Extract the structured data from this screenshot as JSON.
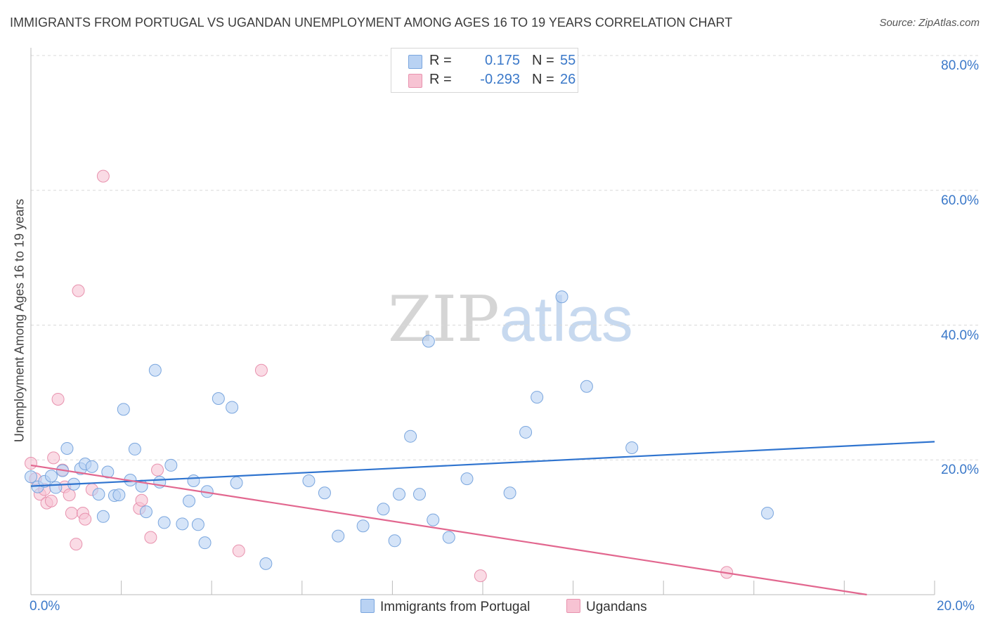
{
  "title": "IMMIGRANTS FROM PORTUGAL VS UGANDAN UNEMPLOYMENT AMONG AGES 16 TO 19 YEARS CORRELATION CHART",
  "source": "Source: ZipAtlas.com",
  "watermark": {
    "zip": "ZIP",
    "atlas": "atlas"
  },
  "colors": {
    "blue_fill": "#b9d2f3",
    "blue_stroke": "#7aa6de",
    "blue_line": "#2f74cf",
    "pink_fill": "#f7c3d3",
    "pink_stroke": "#e892ae",
    "pink_line": "#e2678f",
    "tick_text": "#3a78c9",
    "grid": "#d9d9d9"
  },
  "legend": {
    "rows": [
      {
        "r_label": "R =",
        "r_value": "0.175",
        "n_label": "N =",
        "n_value": "55",
        "color": "#b9d2f3",
        "stroke": "#7aa6de"
      },
      {
        "r_label": "R =",
        "r_value": "-0.293",
        "n_label": "N =",
        "n_value": "26",
        "color": "#f7c3d3",
        "stroke": "#e892ae"
      }
    ]
  },
  "bottom_legend": [
    "Immigrants from Portugal",
    "Ugandans"
  ],
  "chart_data": {
    "type": "scatter",
    "title": "IMMIGRANTS FROM PORTUGAL VS UGANDAN UNEMPLOYMENT AMONG AGES 16 TO 19 YEARS CORRELATION CHART",
    "xlabel": "",
    "ylabel": "Unemployment Among Ages 16 to 19 years",
    "xlim": [
      0,
      20
    ],
    "ylim": [
      0,
      80
    ],
    "x_tick_labels": [
      "0.0%",
      "20.0%"
    ],
    "y_ticks": [
      20,
      40,
      60,
      80
    ],
    "y_tick_labels": [
      "20.0%",
      "40.0%",
      "60.0%",
      "80.0%"
    ],
    "grid": true,
    "series": [
      {
        "name": "Immigrants from Portugal",
        "color": "#b9d2f3",
        "points": [
          [
            0.0,
            17.5
          ],
          [
            0.15,
            16.0
          ],
          [
            0.3,
            16.8
          ],
          [
            0.45,
            17.6
          ],
          [
            0.55,
            15.9
          ],
          [
            0.7,
            18.4
          ],
          [
            0.8,
            21.7
          ],
          [
            0.95,
            16.4
          ],
          [
            1.1,
            18.7
          ],
          [
            1.2,
            19.4
          ],
          [
            1.35,
            19.0
          ],
          [
            1.5,
            14.9
          ],
          [
            1.6,
            11.6
          ],
          [
            1.7,
            18.2
          ],
          [
            1.85,
            14.7
          ],
          [
            1.95,
            14.8
          ],
          [
            2.05,
            27.5
          ],
          [
            2.2,
            17.0
          ],
          [
            2.3,
            21.6
          ],
          [
            2.45,
            16.1
          ],
          [
            2.55,
            12.3
          ],
          [
            2.75,
            33.3
          ],
          [
            2.85,
            16.7
          ],
          [
            2.95,
            10.7
          ],
          [
            3.1,
            19.2
          ],
          [
            3.35,
            10.5
          ],
          [
            3.5,
            13.9
          ],
          [
            3.6,
            16.9
          ],
          [
            3.7,
            10.4
          ],
          [
            3.85,
            7.7
          ],
          [
            3.9,
            15.3
          ],
          [
            4.15,
            29.1
          ],
          [
            4.45,
            27.8
          ],
          [
            4.55,
            16.6
          ],
          [
            5.2,
            4.6
          ],
          [
            6.15,
            16.9
          ],
          [
            6.5,
            15.1
          ],
          [
            6.8,
            8.7
          ],
          [
            7.35,
            10.2
          ],
          [
            7.8,
            12.7
          ],
          [
            8.05,
            8.0
          ],
          [
            8.15,
            14.9
          ],
          [
            8.4,
            23.5
          ],
          [
            8.6,
            14.9
          ],
          [
            8.8,
            37.6
          ],
          [
            8.9,
            11.1
          ],
          [
            9.25,
            8.5
          ],
          [
            9.65,
            17.2
          ],
          [
            10.6,
            15.1
          ],
          [
            10.95,
            24.1
          ],
          [
            11.2,
            29.3
          ],
          [
            11.75,
            44.2
          ],
          [
            12.3,
            30.9
          ],
          [
            13.3,
            21.8
          ],
          [
            16.3,
            12.1
          ]
        ],
        "trend": {
          "x": [
            0,
            20
          ],
          "y": [
            16.1,
            22.7
          ]
        }
      },
      {
        "name": "Ugandans",
        "color": "#f7c3d3",
        "points": [
          [
            0.0,
            19.5
          ],
          [
            0.1,
            17.2
          ],
          [
            0.2,
            14.9
          ],
          [
            0.3,
            15.6
          ],
          [
            0.35,
            13.6
          ],
          [
            0.45,
            13.9
          ],
          [
            0.5,
            20.3
          ],
          [
            0.6,
            29.0
          ],
          [
            0.7,
            18.5
          ],
          [
            0.75,
            16.0
          ],
          [
            0.85,
            14.8
          ],
          [
            0.9,
            12.1
          ],
          [
            1.0,
            7.5
          ],
          [
            1.05,
            45.1
          ],
          [
            1.15,
            12.1
          ],
          [
            1.2,
            11.2
          ],
          [
            1.35,
            15.6
          ],
          [
            1.6,
            62.1
          ],
          [
            2.4,
            12.8
          ],
          [
            2.45,
            14.0
          ],
          [
            2.65,
            8.5
          ],
          [
            2.8,
            18.5
          ],
          [
            4.6,
            6.5
          ],
          [
            5.1,
            33.3
          ],
          [
            9.95,
            2.8
          ],
          [
            15.4,
            3.3
          ]
        ],
        "trend": {
          "x": [
            0,
            18.5
          ],
          "y": [
            19.2,
            0.0
          ]
        }
      }
    ]
  }
}
